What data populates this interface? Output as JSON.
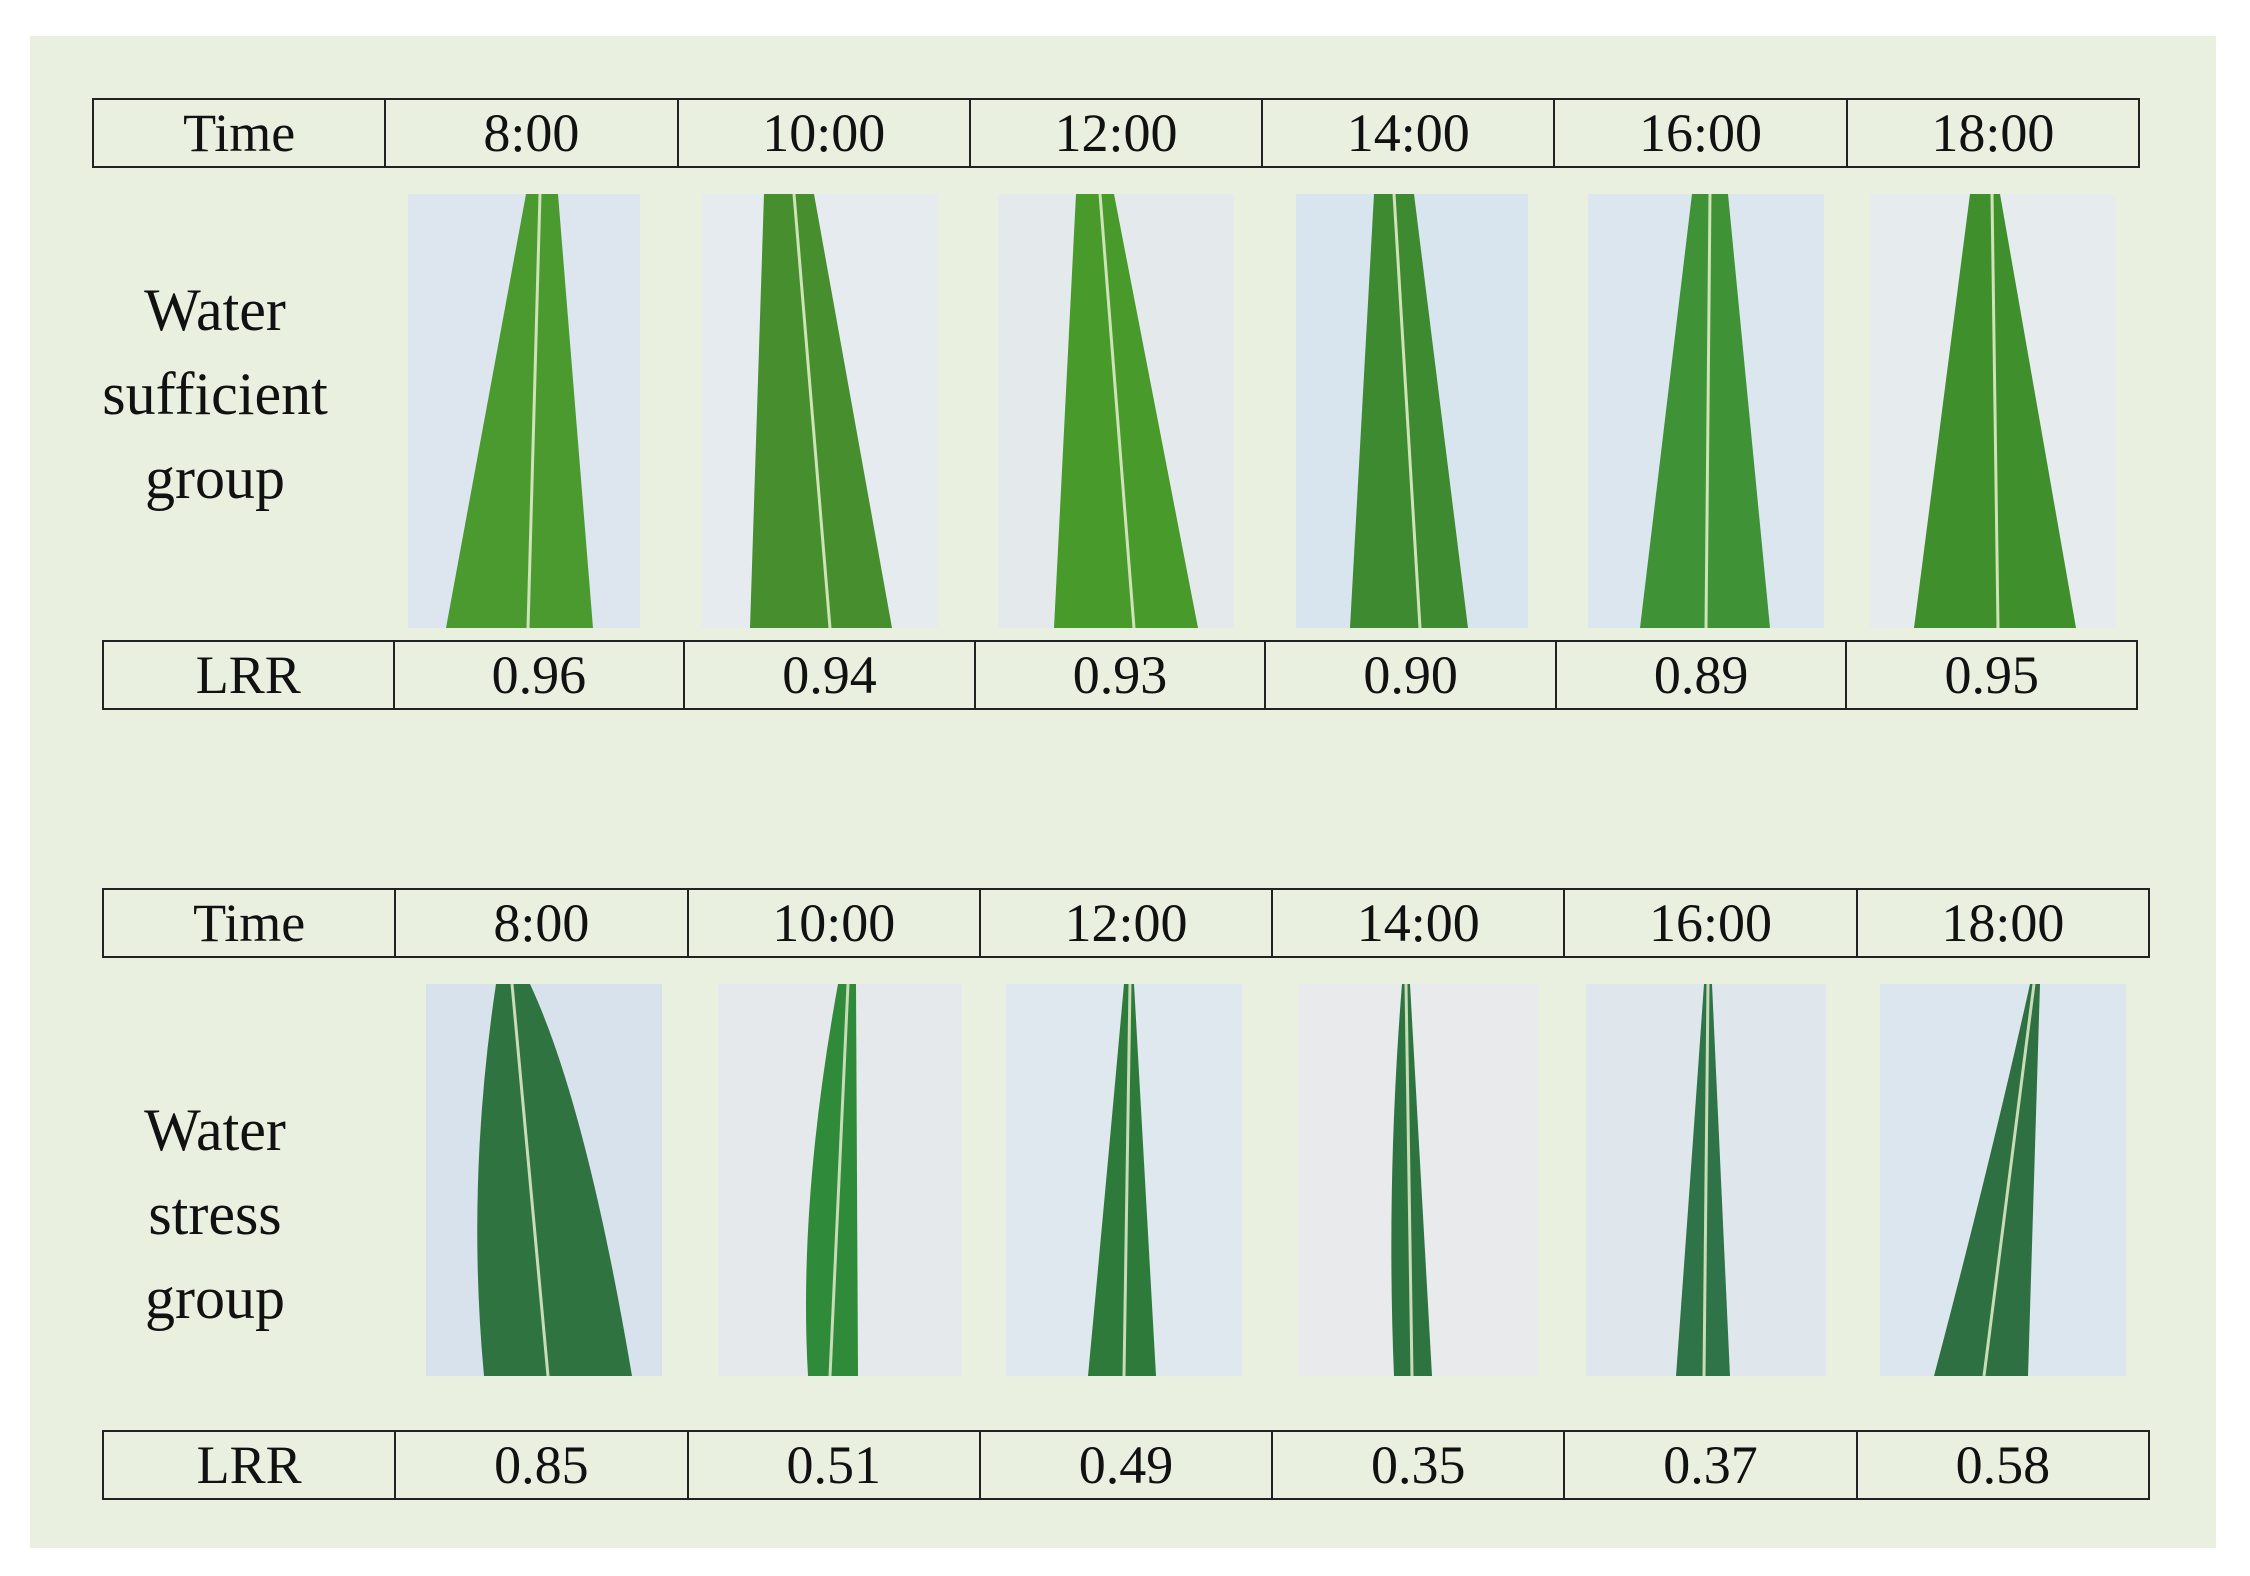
{
  "groups": [
    {
      "label_lines": [
        "Water",
        "sufficient",
        "group"
      ],
      "time_header": "Time",
      "times": [
        "8:00",
        "10:00",
        "12:00",
        "14:00",
        "16:00",
        "18:00"
      ],
      "lrr_header": "LRR",
      "lrr_values": [
        "0.96",
        "0.94",
        "0.93",
        "0.90",
        "0.89",
        "0.95"
      ]
    },
    {
      "label_lines": [
        "Water",
        "stress",
        "group"
      ],
      "time_header": "Time",
      "times": [
        "8:00",
        "10:00",
        "12:00",
        "14:00",
        "16:00",
        "18:00"
      ],
      "lrr_header": "LRR",
      "lrr_values": [
        "0.85",
        "0.51",
        "0.49",
        "0.35",
        "0.37",
        "0.58"
      ]
    }
  ],
  "colors": {
    "panel_background": "#e9f0e0",
    "photo_background": "#dfe8f0",
    "leaf_green": "#3f8a2a",
    "leaf_dark_green": "#2d6e3a",
    "border": "#222222"
  }
}
